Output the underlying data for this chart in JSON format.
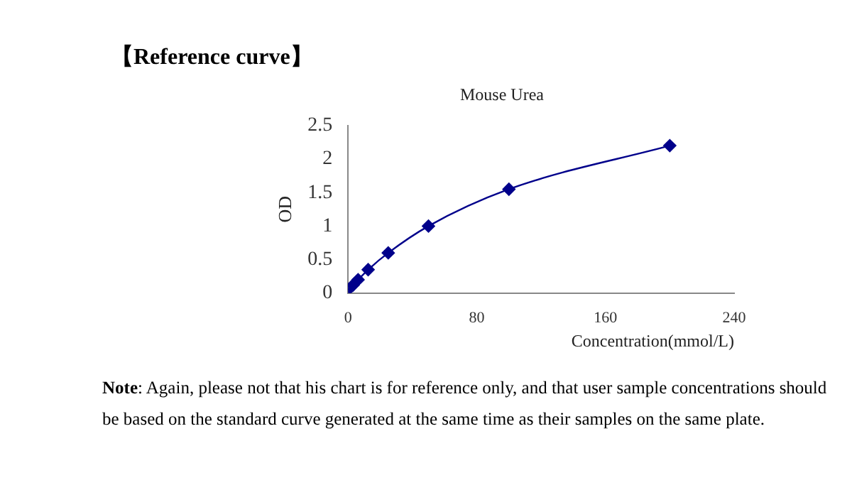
{
  "chart_data": {
    "type": "line",
    "title": "Mouse Urea",
    "xlabel": "Concentration(mmol/L)",
    "ylabel": "OD",
    "x": [
      0,
      3.125,
      6.25,
      12.5,
      25,
      50,
      100,
      200
    ],
    "series": [
      {
        "color": "#00008b",
        "values": [
          0.05,
          0.12,
          0.2,
          0.35,
          0.6,
          1.0,
          1.55,
          2.2
        ]
      }
    ],
    "xlim": [
      0,
      240
    ],
    "xticks": [
      0,
      80,
      160,
      240
    ],
    "ylim": [
      0,
      2.5
    ],
    "yticks": [
      0,
      0.5,
      1,
      1.5,
      2,
      2.5
    ],
    "grid": false,
    "legend": false,
    "marker": "diamond",
    "line_style": "solid",
    "annotations": [
      "【Reference curve】",
      "Note: Again, please not that his chart is for reference only, and that user sample concentrations should be based on the standard curve generated at the same time as their samples on the same plate."
    ]
  }
}
